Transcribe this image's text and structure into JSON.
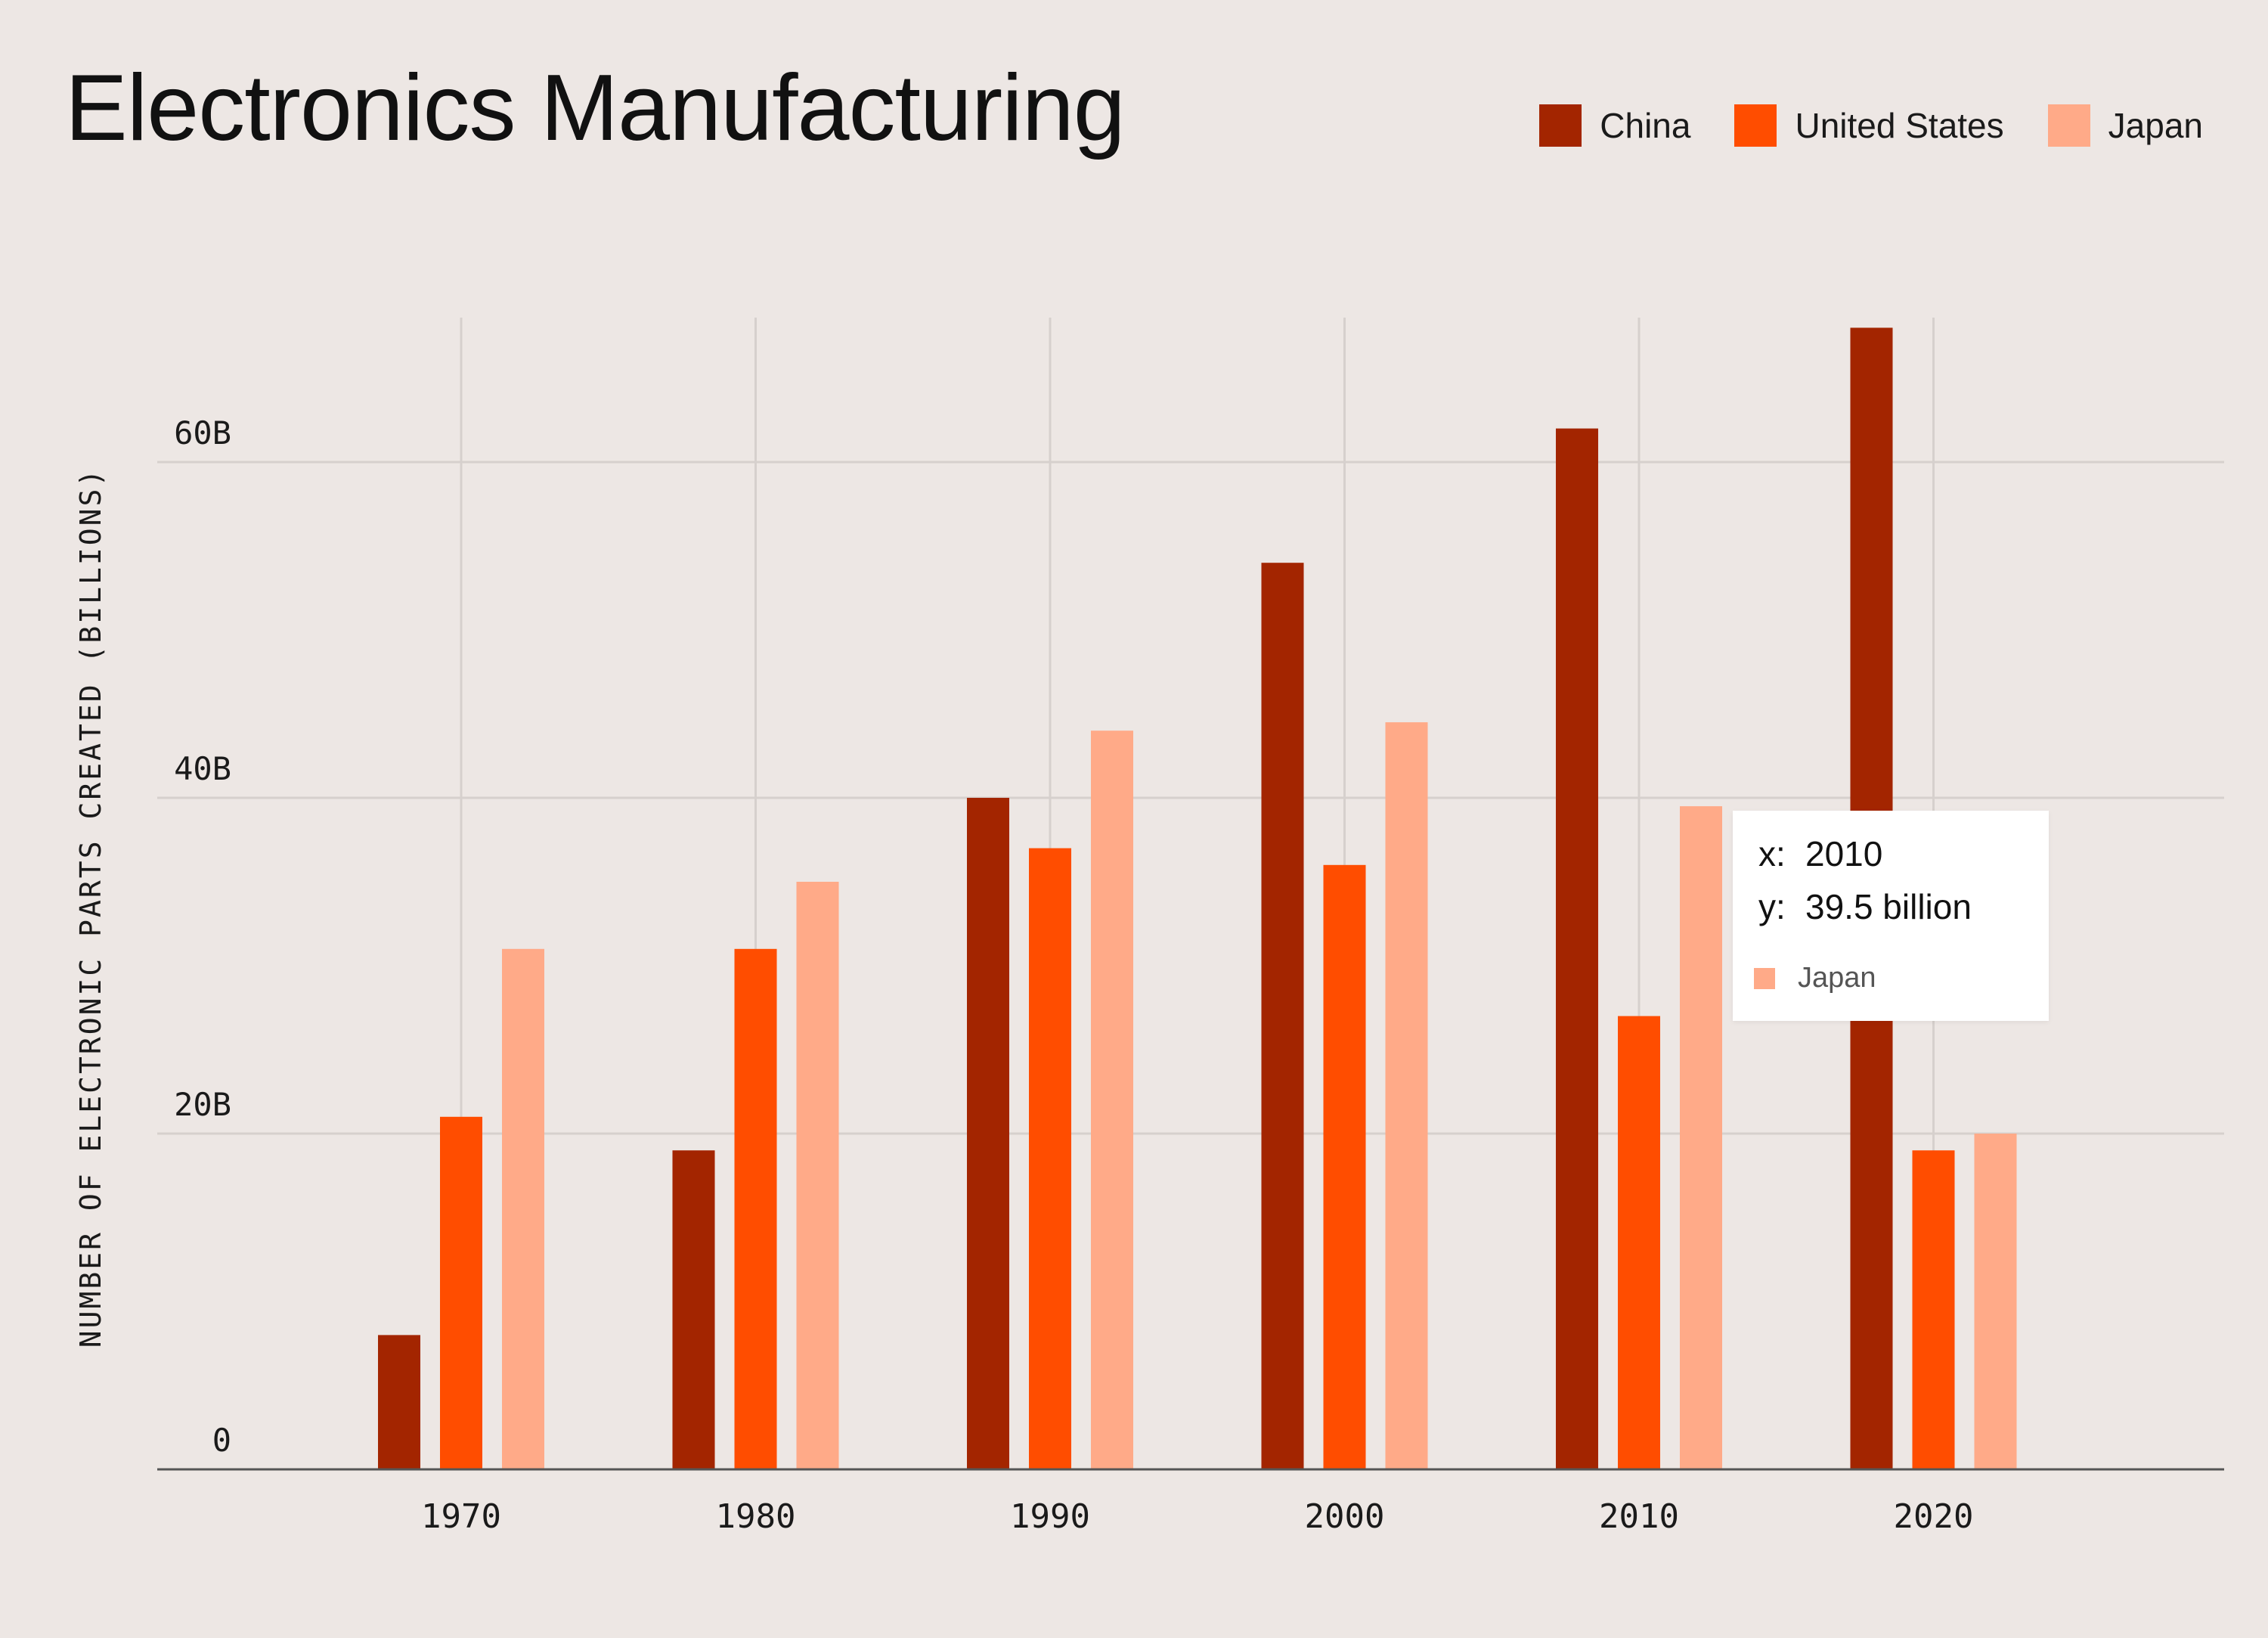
{
  "chart_data": {
    "type": "bar",
    "title": "Electronics Manufacturing",
    "xlabel": "",
    "ylabel": "NUMBER OF ELECTRONIC PARTS CREATED (BILLIONS)",
    "categories": [
      "1970",
      "1980",
      "1990",
      "2000",
      "2010",
      "2020"
    ],
    "series": [
      {
        "name": "China",
        "color": "#a32500",
        "values": [
          8,
          19,
          40,
          54,
          62,
          68
        ]
      },
      {
        "name": "United States",
        "color": "#ff4d00",
        "values": [
          21,
          31,
          37,
          36,
          27,
          19
        ]
      },
      {
        "name": "Japan",
        "color": "#ffaa88",
        "values": [
          31,
          35,
          44,
          44.5,
          39.5,
          20
        ]
      }
    ],
    "ylim": [
      0,
      68
    ],
    "yticks": [
      0,
      20,
      40,
      60
    ],
    "ytick_labels": [
      "0",
      "20B",
      "40B",
      "60B"
    ],
    "grid": true,
    "legend": "top-right",
    "tooltip": {
      "x_key": "x:",
      "x_value": "2010",
      "y_key": "y:",
      "y_value": "39.5 billion",
      "series": "Japan"
    }
  }
}
